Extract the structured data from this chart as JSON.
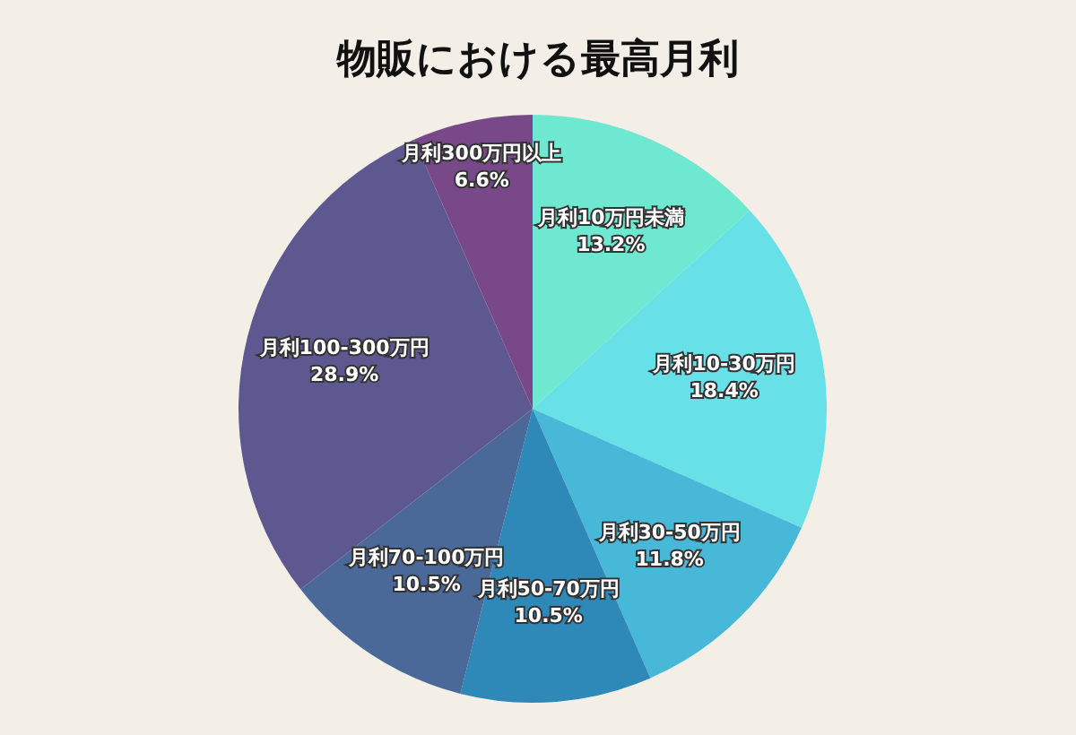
{
  "chart_data": {
    "type": "pie",
    "title": "物販における最高月利",
    "categories": [
      "月利10万円未満",
      "月利10-30万円",
      "月利30-50万円",
      "月利50-70万円",
      "月利70-100万円",
      "月利100-300万円",
      "月利300万円以上"
    ],
    "values": [
      13.2,
      18.4,
      11.8,
      10.5,
      10.5,
      28.9,
      6.6
    ],
    "value_labels": [
      "13.2%",
      "18.4%",
      "11.8%",
      "10.5%",
      "10.5%",
      "28.9%",
      "6.6%"
    ],
    "colors": [
      "#6ee8d0",
      "#68e0e8",
      "#48b8d8",
      "#2e88b8",
      "#4a6898",
      "#5e5890",
      "#784888"
    ],
    "legend": false
  }
}
